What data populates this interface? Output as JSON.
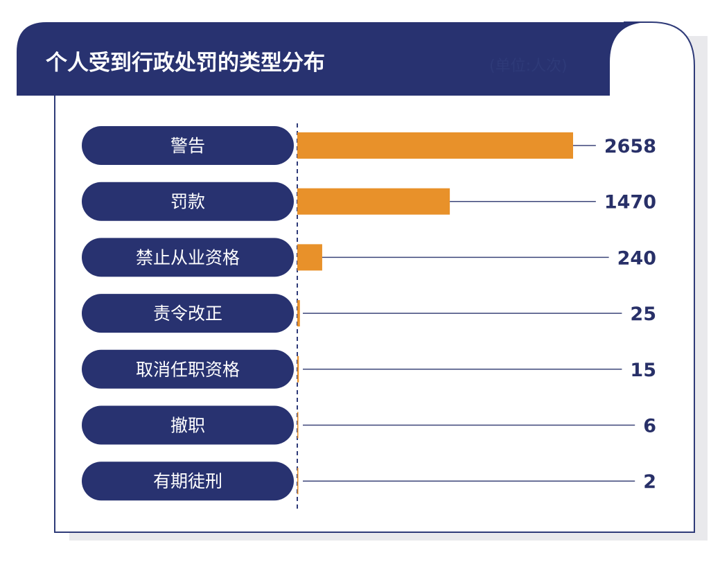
{
  "header": {
    "title": "个人受到行政处罚的类型分布",
    "unit": "(单位:人次)"
  },
  "colors": {
    "navy": "#283270",
    "bar": "#e8912a",
    "leader": "#3b4478",
    "shadow": "#e9e9ec",
    "border": "#2e3a78"
  },
  "chart_data": {
    "type": "bar",
    "orientation": "horizontal",
    "title": "个人受到行政处罚的类型分布",
    "unit": "(单位:人次)",
    "categories": [
      "警告",
      "罚款",
      "禁止从业资格",
      "责令改正",
      "取消任职资格",
      "撤职",
      "有期徒刑"
    ],
    "values": [
      2658,
      1470,
      240,
      25,
      15,
      6,
      2
    ],
    "xlim": [
      0,
      2658
    ]
  }
}
